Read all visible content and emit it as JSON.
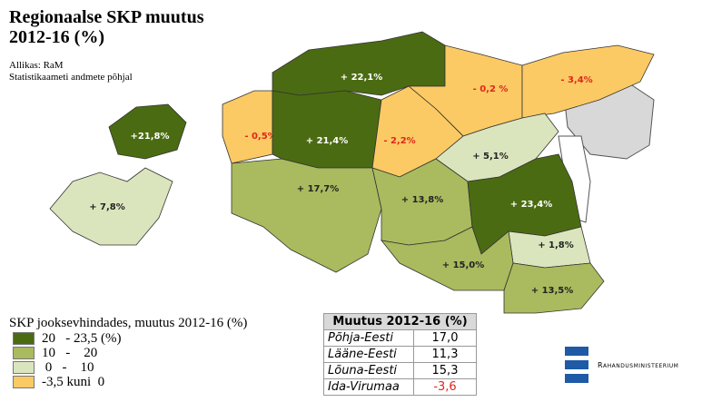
{
  "header": {
    "title": [
      "Regionaalse SKP muutus",
      "2012-16 (%)"
    ],
    "source": [
      "Allikas: RaM",
      "Statistikaameti andmete põhjal"
    ]
  },
  "regions": [
    {
      "label": "+ 22,1%",
      "legend": 0
    },
    {
      "label": "- 0,2 %",
      "legend": 3
    },
    {
      "label": "- 3,4%",
      "legend": 3
    },
    {
      "label": "+21,8%",
      "legend": 0
    },
    {
      "label": "- 0,5%",
      "legend": 3
    },
    {
      "label": "+ 21,4%",
      "legend": 0
    },
    {
      "label": "- 2,2%",
      "legend": 3
    },
    {
      "label": "+ 5,1%",
      "legend": 2
    },
    {
      "label": "+ 7,8%",
      "legend": 2
    },
    {
      "label": "+ 17,7%",
      "legend": 1
    },
    {
      "label": "+ 13,8%",
      "legend": 1
    },
    {
      "label": "+ 23,4%",
      "legend": 0
    },
    {
      "label": "+ 1,8%",
      "legend": 2
    },
    {
      "label": "+ 15,0%",
      "legend": 1
    },
    {
      "label": "+ 13,5%",
      "legend": 1
    }
  ],
  "legend": {
    "title": "SKP jooksevhindades, muutus 2012-16 (%)",
    "items": [
      {
        "label": "20   - 23,5 (%)",
        "color": "#4b6b12"
      },
      {
        "label": "10   -    20",
        "color": "#a9bb5e"
      },
      {
        "label": " 0   -    10",
        "color": "#dbe5bd"
      },
      {
        "label": "-3,5 kuni  0",
        "color": "#fbca64"
      }
    ]
  },
  "table": {
    "header": "Muutus 2012-16 (%)",
    "rows": [
      [
        "Põhja-Eesti",
        "17,0"
      ],
      [
        "Lääne-Eesti",
        "11,3"
      ],
      [
        "Lõuna-Eesti",
        "15,3"
      ],
      [
        "Ida-Virumaa",
        "-3,6"
      ]
    ]
  },
  "logo": "Rahandusministeerium"
}
